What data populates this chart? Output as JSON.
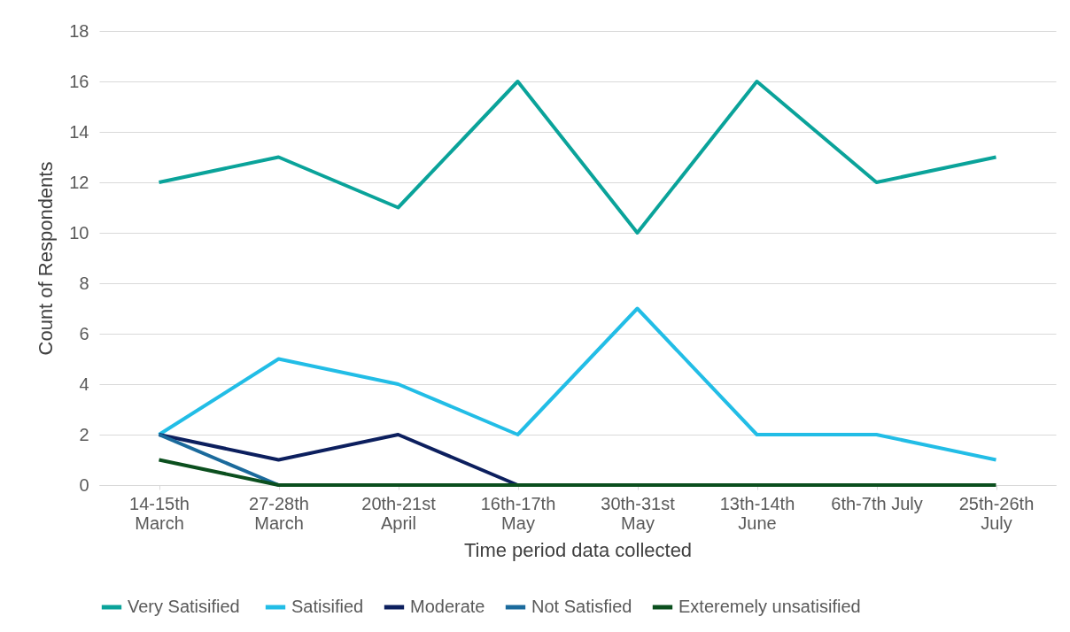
{
  "chart_data": {
    "type": "line",
    "xlabel": "Time period data collected",
    "ylabel": "Count of Respondents",
    "categories": [
      "14-15th March",
      "27-28th March",
      "20th-21st April",
      "16th-17th May",
      "30th-31st May",
      "13th-14th June",
      "6th-7th July",
      "25th-26th July"
    ],
    "series": [
      {
        "name": "Very  Satisified",
        "color": "#0aa39a",
        "values": [
          12,
          13,
          11,
          16,
          10,
          16,
          12,
          13
        ]
      },
      {
        "name": "Satisified",
        "color": "#22bde6",
        "values": [
          2,
          5,
          4,
          2,
          7,
          2,
          2,
          1
        ]
      },
      {
        "name": "Moderate",
        "color": "#0c1f5e",
        "values": [
          2,
          1,
          2,
          0,
          null,
          null,
          null,
          null
        ]
      },
      {
        "name": "Not Satisfied",
        "color": "#1b6a9c",
        "values": [
          2,
          0,
          null,
          null,
          null,
          null,
          null,
          null
        ]
      },
      {
        "name": "Exteremely unsatisified",
        "color": "#0b4f1e",
        "values": [
          1,
          0,
          0,
          0,
          0,
          0,
          0,
          0
        ]
      }
    ],
    "ylim": [
      0,
      18
    ],
    "yticks": [
      0,
      2,
      4,
      6,
      8,
      10,
      12,
      14,
      16,
      18
    ],
    "grid": "y",
    "legend": "bottom",
    "marker": "none",
    "line_style": "solid"
  }
}
